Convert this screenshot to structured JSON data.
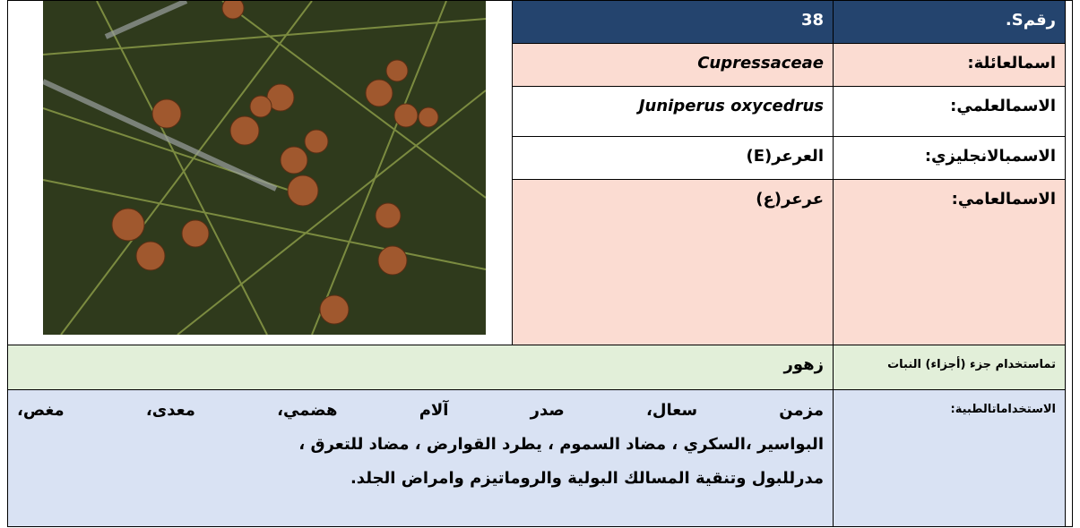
{
  "table": {
    "rows": [
      {
        "label": "رقمS.",
        "value": "38"
      },
      {
        "label": "اسمالعائلة:",
        "value": "Cupressaceae"
      },
      {
        "label": "الاسمالعلمي:",
        "value": "Juniperus oxycedrus"
      },
      {
        "label": "الاسمبالانجليزي:",
        "value": "العرعر(E)"
      },
      {
        "label": "الاسمالعامي:",
        "value": "عرعر(ع)"
      },
      {
        "label": "تماستخدام جزء (أجزاء) النبات",
        "value": "زهور"
      },
      {
        "label": "الاستخداماتالطبية:",
        "lines": [
          "مزمن سعال، صدر آلام هضمي، معدى، مغص،",
          "البواسير ،السكري ، مضاد السموم ، يطرد القوارض ، مضاد للتعرق ،",
          "مدرللبول وتنقية المسالك البولية والروماتيزم وامراض الجلد."
        ]
      }
    ]
  }
}
